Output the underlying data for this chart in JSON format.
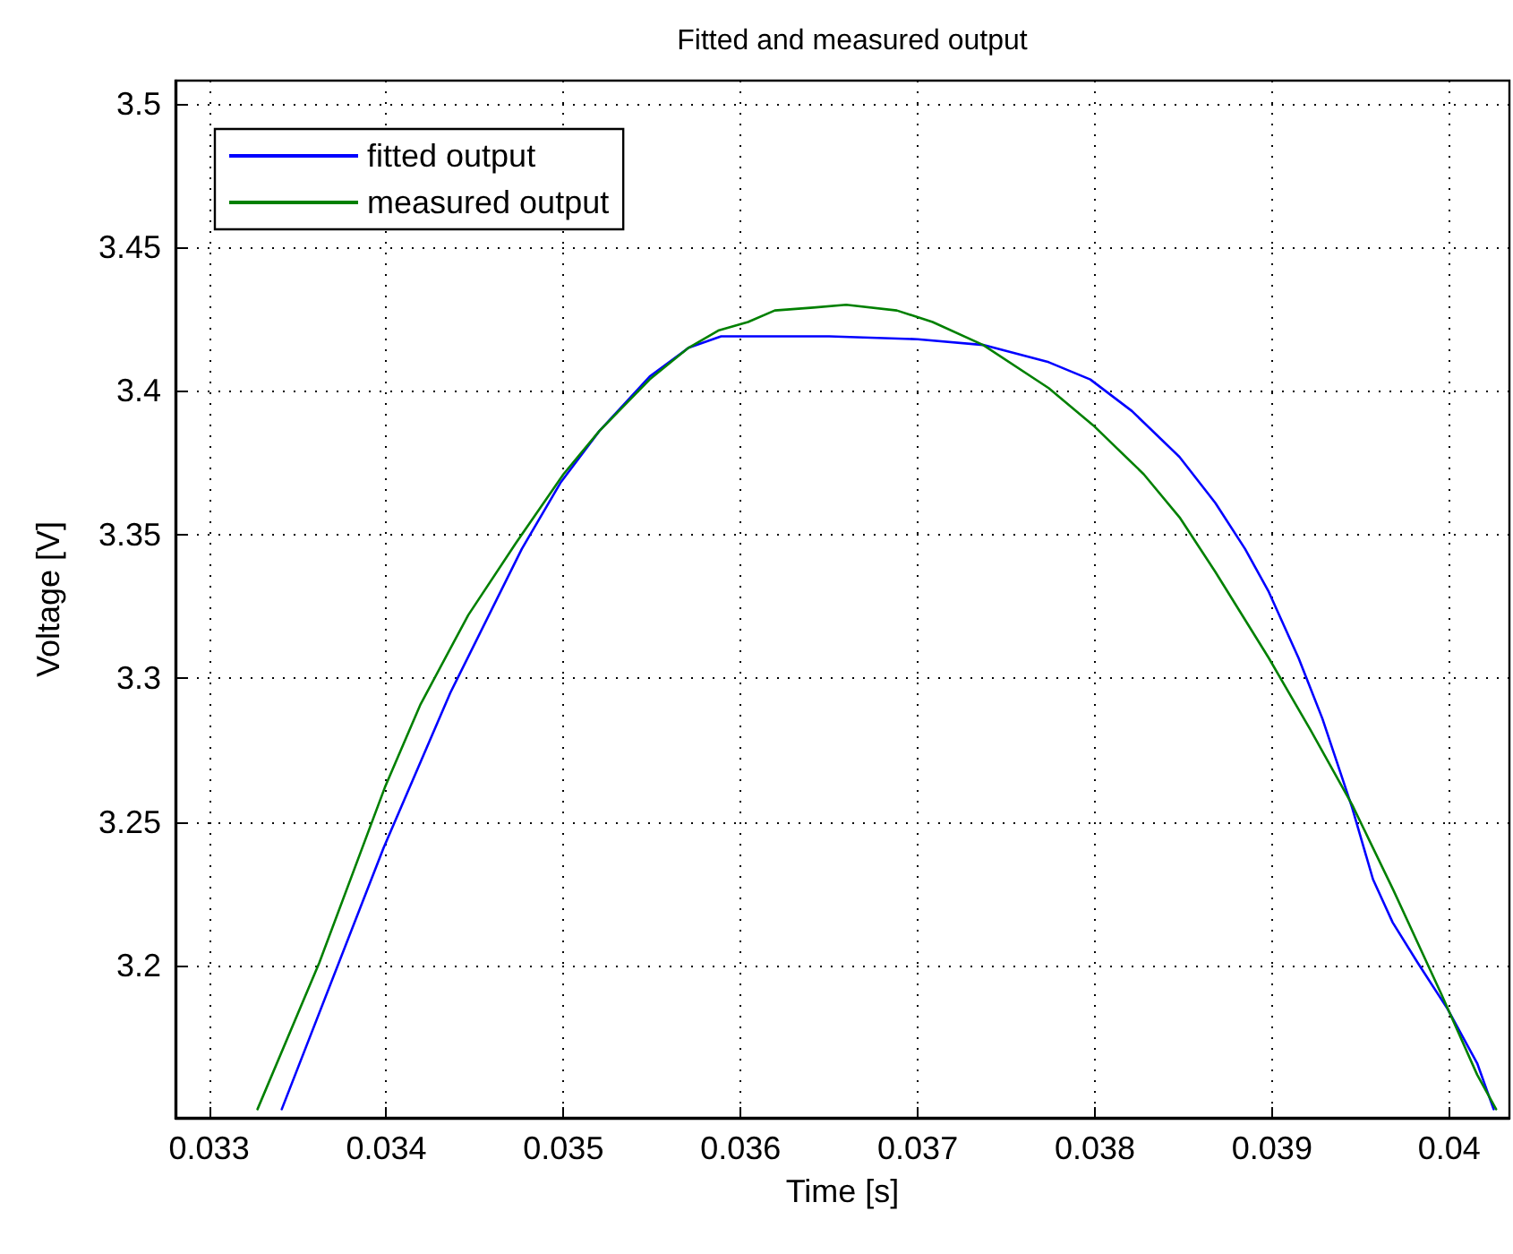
{
  "chart_data": {
    "type": "line",
    "title": "Fitted and measured output",
    "xlabel": "Time [s]",
    "ylabel": "Voltage [V]",
    "xlim": [
      0.03281,
      0.04034
    ],
    "ylim": [
      3.147,
      3.508
    ],
    "xticks": [
      0.033,
      0.034,
      0.035,
      0.036,
      0.037,
      0.038,
      0.039,
      0.04
    ],
    "yticks": [
      3.2,
      3.25,
      3.3,
      3.35,
      3.4,
      3.45,
      3.5
    ],
    "grid": true,
    "legend": "top left",
    "marker": "none",
    "line_style": "solid",
    "series": [
      {
        "name": "fitted output",
        "color": "#0000ff",
        "x": [
          0.03341,
          0.033985,
          0.034362,
          0.034765,
          0.034983,
          0.035202,
          0.035487,
          0.035706,
          0.03589,
          0.036008,
          0.0365,
          0.037,
          0.037369,
          0.037739,
          0.037974,
          0.038209,
          0.038478,
          0.03868,
          0.038848,
          0.038982,
          0.03915,
          0.039284,
          0.039452,
          0.03957,
          0.039681,
          0.039822,
          0.03999,
          0.040158,
          0.040251
        ],
        "values": [
          3.15,
          3.241,
          3.295,
          3.345,
          3.368,
          3.386,
          3.405,
          3.415,
          3.419,
          3.419,
          3.419,
          3.418,
          3.416,
          3.41,
          3.404,
          3.393,
          3.377,
          3.361,
          3.345,
          3.33,
          3.307,
          3.286,
          3.255,
          3.23,
          3.215,
          3.201,
          3.185,
          3.166,
          3.15
        ]
      },
      {
        "name": "measured output",
        "color": "#008000",
        "x": [
          0.033273,
          0.033622,
          0.033992,
          0.034194,
          0.034463,
          0.034731,
          0.035,
          0.035202,
          0.035487,
          0.035706,
          0.035874,
          0.036042,
          0.036193,
          0.036411,
          0.036596,
          0.036882,
          0.037084,
          0.037369,
          0.037739,
          0.037991,
          0.038276,
          0.038478,
          0.03868,
          0.038982,
          0.039217,
          0.039452,
          0.039687,
          0.039956,
          0.040158,
          0.040265
        ],
        "values": [
          3.15,
          3.201,
          3.262,
          3.291,
          3.322,
          3.347,
          3.371,
          3.386,
          3.404,
          3.415,
          3.421,
          3.424,
          3.428,
          3.429,
          3.43,
          3.428,
          3.424,
          3.416,
          3.401,
          3.388,
          3.371,
          3.356,
          3.337,
          3.307,
          3.282,
          3.256,
          3.226,
          3.19,
          3.162,
          3.15
        ]
      }
    ]
  }
}
